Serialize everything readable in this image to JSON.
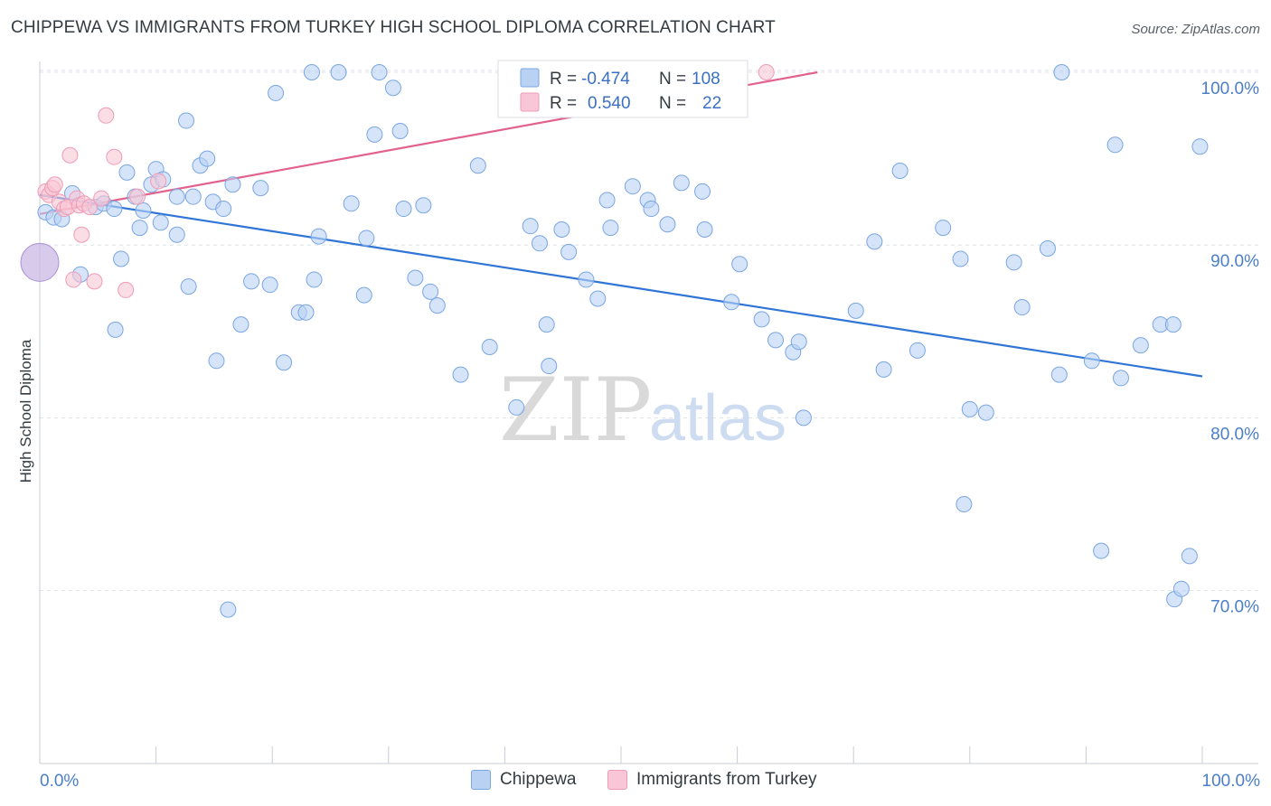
{
  "header": {
    "title": "CHIPPEWA VS IMMIGRANTS FROM TURKEY HIGH SCHOOL DIPLOMA CORRELATION CHART",
    "source": "Source: ZipAtlas.com"
  },
  "watermark": {
    "zip": "ZIP",
    "atlas": "atlas"
  },
  "colors": {
    "blue_fill": "#b9d2f3",
    "blue_stroke": "#7aa6e3",
    "blue_line": "#2f75d6",
    "pink_fill": "#f8c6d6",
    "pink_stroke": "#ee9bb7",
    "pink_line": "#e2628d",
    "tick_text": "#4a7ec9",
    "grid": "#dde2e8"
  },
  "legend": {
    "rows": [
      {
        "r_label": "R =",
        "r_value": "-0.474",
        "n_label": "N =",
        "n_value": "108"
      },
      {
        "r_label": "R =",
        "r_value": "0.540",
        "n_label": "N =",
        "n_value": "22"
      }
    ]
  },
  "bottom_legend": {
    "series1": "Chippewa",
    "series2": "Immigrants from Turkey"
  },
  "chart_data": {
    "type": "scatter",
    "title": "CHIPPEWA VS IMMIGRANTS FROM TURKEY HIGH SCHOOL DIPLOMA CORRELATION CHART",
    "xlabel": "",
    "ylabel": "High School Diploma",
    "xlim": [
      0,
      100
    ],
    "ylim": [
      60,
      102
    ],
    "x_tick_labels": [
      "0.0%",
      "100.0%"
    ],
    "y_ticks": [
      70,
      80,
      90,
      100
    ],
    "y_tick_labels": [
      "70.0%",
      "80.0%",
      "90.0%",
      "100.0%"
    ],
    "grid": true,
    "series": [
      {
        "name": "Chippewa",
        "r": -0.474,
        "n": 108,
        "trend": {
          "x": [
            0,
            100
          ],
          "y": [
            92.9,
            82.4
          ]
        },
        "points": [
          [
            0.5,
            91.9
          ],
          [
            1.2,
            91.6
          ],
          [
            1.9,
            91.5
          ],
          [
            2.8,
            93.0
          ],
          [
            3.5,
            88.3
          ],
          [
            4.8,
            92.2
          ],
          [
            5.5,
            92.4
          ],
          [
            6.4,
            92.1
          ],
          [
            6.5,
            85.1
          ],
          [
            7.0,
            89.2
          ],
          [
            7.5,
            94.2
          ],
          [
            8.2,
            92.8
          ],
          [
            8.6,
            91.0
          ],
          [
            8.9,
            92.0
          ],
          [
            9.6,
            93.5
          ],
          [
            10.0,
            94.4
          ],
          [
            10.6,
            93.8
          ],
          [
            10.4,
            91.3
          ],
          [
            11.8,
            92.8
          ],
          [
            11.8,
            90.6
          ],
          [
            12.6,
            97.2
          ],
          [
            12.8,
            87.6
          ],
          [
            13.2,
            92.8
          ],
          [
            13.8,
            94.6
          ],
          [
            14.4,
            95.0
          ],
          [
            14.9,
            92.5
          ],
          [
            15.2,
            83.3
          ],
          [
            15.8,
            92.1
          ],
          [
            16.2,
            68.9
          ],
          [
            16.6,
            93.5
          ],
          [
            17.3,
            85.4
          ],
          [
            18.2,
            87.9
          ],
          [
            19.0,
            93.3
          ],
          [
            19.8,
            87.7
          ],
          [
            20.3,
            98.8
          ],
          [
            21.0,
            83.2
          ],
          [
            22.3,
            86.1
          ],
          [
            22.9,
            86.1
          ],
          [
            23.4,
            100.0
          ],
          [
            23.6,
            88.0
          ],
          [
            24.0,
            90.5
          ],
          [
            25.7,
            100.0
          ],
          [
            26.8,
            92.4
          ],
          [
            28.1,
            90.4
          ],
          [
            27.9,
            87.1
          ],
          [
            28.8,
            96.4
          ],
          [
            29.2,
            100.0
          ],
          [
            30.4,
            99.1
          ],
          [
            31.0,
            96.6
          ],
          [
            31.3,
            92.1
          ],
          [
            32.3,
            88.1
          ],
          [
            33.0,
            92.3
          ],
          [
            34.2,
            86.5
          ],
          [
            36.2,
            82.5
          ],
          [
            37.7,
            94.6
          ],
          [
            41.0,
            80.6
          ],
          [
            42.2,
            91.1
          ],
          [
            43.0,
            90.1
          ],
          [
            43.6,
            85.4
          ],
          [
            43.8,
            83.0
          ],
          [
            44.9,
            90.9
          ],
          [
            45.5,
            89.6
          ],
          [
            47.0,
            88.0
          ],
          [
            48.0,
            86.9
          ],
          [
            48.8,
            92.6
          ],
          [
            49.1,
            91.0
          ],
          [
            51.0,
            93.4
          ],
          [
            52.3,
            92.6
          ],
          [
            52.6,
            92.1
          ],
          [
            54.0,
            91.2
          ],
          [
            55.2,
            93.6
          ],
          [
            57.2,
            90.9
          ],
          [
            59.5,
            86.7
          ],
          [
            62.1,
            85.7
          ],
          [
            63.3,
            84.5
          ],
          [
            64.8,
            83.8
          ],
          [
            65.3,
            84.4
          ],
          [
            65.7,
            80.0
          ],
          [
            70.2,
            86.2
          ],
          [
            72.6,
            82.8
          ],
          [
            74.0,
            94.3
          ],
          [
            75.5,
            83.9
          ],
          [
            77.7,
            91.0
          ],
          [
            79.2,
            89.2
          ],
          [
            79.5,
            75.0
          ],
          [
            80.0,
            80.5
          ],
          [
            81.4,
            80.3
          ],
          [
            83.8,
            89.0
          ],
          [
            86.7,
            89.8
          ],
          [
            87.7,
            82.5
          ],
          [
            87.9,
            100.0
          ],
          [
            90.5,
            83.3
          ],
          [
            91.3,
            72.3
          ],
          [
            92.5,
            95.8
          ],
          [
            93.0,
            82.3
          ],
          [
            94.7,
            84.2
          ],
          [
            96.4,
            85.4
          ],
          [
            97.5,
            85.4
          ],
          [
            97.6,
            69.5
          ],
          [
            98.2,
            70.1
          ],
          [
            98.9,
            72.0
          ],
          [
            99.8,
            95.7
          ],
          [
            57.0,
            93.1
          ],
          [
            33.6,
            87.3
          ],
          [
            38.7,
            84.1
          ],
          [
            60.2,
            88.9
          ],
          [
            71.8,
            90.2
          ],
          [
            84.5,
            86.4
          ]
        ]
      },
      {
        "name": "Immigrants from Turkey",
        "r": 0.54,
        "n": 22,
        "trend": {
          "x": [
            0,
            66.9
          ],
          "y": [
            91.8,
            100.0
          ]
        },
        "points": [
          [
            0.5,
            93.1
          ],
          [
            0.8,
            92.9
          ],
          [
            1.1,
            93.3
          ],
          [
            1.3,
            93.5
          ],
          [
            1.7,
            92.5
          ],
          [
            2.1,
            92.1
          ],
          [
            2.4,
            92.2
          ],
          [
            2.6,
            95.2
          ],
          [
            2.9,
            88.0
          ],
          [
            3.2,
            92.7
          ],
          [
            3.4,
            92.3
          ],
          [
            3.6,
            90.6
          ],
          [
            3.8,
            92.4
          ],
          [
            4.3,
            92.2
          ],
          [
            4.7,
            87.9
          ],
          [
            5.3,
            92.7
          ],
          [
            5.7,
            97.5
          ],
          [
            6.4,
            95.1
          ],
          [
            7.4,
            87.4
          ],
          [
            8.4,
            92.8
          ],
          [
            10.2,
            93.7
          ],
          [
            62.5,
            100.0
          ]
        ]
      }
    ],
    "large_point": {
      "series": "Chippewa",
      "x": 0.0,
      "y": 89.0
    }
  }
}
